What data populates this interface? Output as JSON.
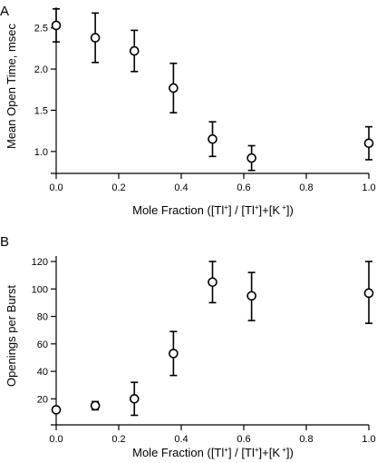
{
  "chart_data": [
    {
      "panel": "A",
      "type": "scatter",
      "error_bars": true,
      "xlabel": {
        "pre": "Mole Fraction ([Tl",
        "sup1": "+",
        "mid": "] /  [Tl",
        "sup2": "+",
        "post": "]+[K",
        "sup3": " +",
        "end": "])"
      },
      "ylabel": "Mean Open Time, msec",
      "xlim": [
        0,
        1.0
      ],
      "ylim": [
        0.8,
        2.75
      ],
      "xticks": [
        0.0,
        0.2,
        0.4,
        0.6,
        0.8,
        1.0
      ],
      "xtick_labels": [
        "0.0",
        "0.2",
        "0.4",
        "0.6",
        "0.8",
        "1.0"
      ],
      "yticks": [
        1.0,
        1.5,
        2.0,
        2.5
      ],
      "ytick_labels": [
        "1.0",
        "1.5",
        "2.0",
        "2.5"
      ],
      "points": [
        {
          "x": 0.0,
          "y": 2.53,
          "lo": 2.33,
          "hi": 2.73
        },
        {
          "x": 0.125,
          "y": 2.38,
          "lo": 2.08,
          "hi": 2.68
        },
        {
          "x": 0.25,
          "y": 2.22,
          "lo": 1.97,
          "hi": 2.47
        },
        {
          "x": 0.375,
          "y": 1.77,
          "lo": 1.47,
          "hi": 2.07
        },
        {
          "x": 0.5,
          "y": 1.15,
          "lo": 0.94,
          "hi": 1.36
        },
        {
          "x": 0.625,
          "y": 0.92,
          "lo": 0.77,
          "hi": 1.07
        },
        {
          "x": 1.0,
          "y": 1.1,
          "lo": 0.9,
          "hi": 1.3
        }
      ]
    },
    {
      "panel": "B",
      "type": "scatter",
      "error_bars": true,
      "xlabel": {
        "pre": "Mole Fraction ([Tl",
        "sup1": "+",
        "mid": "] /  [Tl",
        "sup2": "+",
        "post": "]+[K",
        "sup3": " +",
        "end": "])"
      },
      "ylabel": "Openings per Burst",
      "xlim": [
        0,
        1.0
      ],
      "ylim": [
        5,
        124
      ],
      "xticks": [
        0.0,
        0.2,
        0.4,
        0.6,
        0.8,
        1.0
      ],
      "xtick_labels": [
        "0.0",
        "0.2",
        "0.4",
        "0.6",
        "0.8",
        "1.0"
      ],
      "yticks": [
        20,
        40,
        60,
        80,
        100,
        120
      ],
      "ytick_labels": [
        "20",
        "40",
        "60",
        "80",
        "100",
        "120"
      ],
      "points": [
        {
          "x": 0.0,
          "y": 12,
          "lo": 10,
          "hi": 14
        },
        {
          "x": 0.125,
          "y": 15,
          "lo": 12,
          "hi": 18
        },
        {
          "x": 0.25,
          "y": 20,
          "lo": 8,
          "hi": 32
        },
        {
          "x": 0.375,
          "y": 53,
          "lo": 37,
          "hi": 69
        },
        {
          "x": 0.5,
          "y": 105,
          "lo": 90,
          "hi": 120
        },
        {
          "x": 0.625,
          "y": 95,
          "lo": 77,
          "hi": 112
        },
        {
          "x": 1.0,
          "y": 97,
          "lo": 75,
          "hi": 120
        }
      ]
    }
  ]
}
